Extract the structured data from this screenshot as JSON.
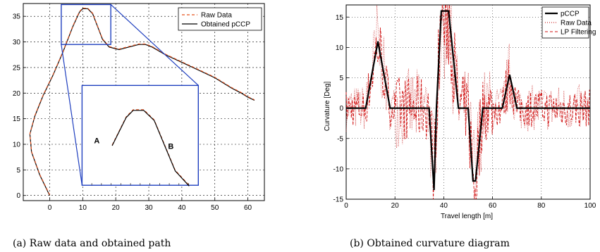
{
  "chart_data": [
    {
      "type": "line",
      "caption": "(a) Raw data and obtained path",
      "xlim": [
        -8,
        65
      ],
      "ylim": [
        -1,
        37.5
      ],
      "x_ticks": [
        0,
        10,
        20,
        30,
        40,
        50,
        60
      ],
      "y_ticks": [
        0,
        5,
        10,
        15,
        20,
        25,
        30,
        35
      ],
      "grid": true,
      "legend_position": "top-right",
      "series": [
        {
          "name": "Raw Data",
          "color": "#e8531f",
          "style": "dashed",
          "x": [
            0,
            -3,
            -5.5,
            -6,
            -4.5,
            -2,
            1,
            4,
            7,
            9,
            10,
            11.5,
            13,
            14.5,
            16,
            18,
            21,
            24,
            27,
            29,
            31,
            35,
            40,
            45,
            50,
            55,
            58,
            60,
            62
          ],
          "y": [
            0,
            4,
            8.5,
            12,
            15.5,
            19.5,
            23.5,
            28,
            33,
            35.8,
            36.5,
            36.5,
            35.5,
            33,
            30.5,
            29,
            28.5,
            29,
            29.5,
            29.5,
            29,
            27.5,
            26,
            24.5,
            23,
            21,
            20,
            19.2,
            18.6
          ]
        },
        {
          "name": "Obtained pCCP",
          "color": "#000000",
          "style": "solid",
          "x": [
            0,
            -3,
            -5.5,
            -6,
            -4.5,
            -2,
            1,
            4,
            7,
            9,
            10,
            11.5,
            13,
            14.5,
            16,
            18,
            21,
            24,
            27,
            29,
            31,
            35,
            40,
            45,
            50,
            55,
            58,
            60,
            62
          ],
          "y": [
            0,
            4,
            8.5,
            12,
            15.5,
            19.5,
            23.5,
            28,
            33,
            35.8,
            36.5,
            36.5,
            35.5,
            33,
            30.5,
            29,
            28.5,
            29,
            29.5,
            29.5,
            29,
            27.5,
            26,
            24.5,
            23,
            21,
            20,
            19.2,
            18.6
          ]
        }
      ],
      "inset": {
        "labels": [
          "A",
          "B"
        ]
      }
    },
    {
      "type": "line",
      "caption": "(b) Obtained curvature diagram",
      "xlabel": "Travel length [m]",
      "ylabel": "Curvature [Deg]",
      "xlim": [
        0,
        100
      ],
      "ylim": [
        -15,
        17
      ],
      "x_ticks": [
        0,
        20,
        40,
        60,
        80,
        100
      ],
      "y_ticks": [
        -15,
        -10,
        -5,
        0,
        5,
        10,
        15
      ],
      "grid": true,
      "legend_position": "top-right",
      "series": [
        {
          "name": "pCCP",
          "color": "#000000",
          "style": "solid",
          "x": [
            0,
            8,
            13,
            18,
            34,
            36,
            37,
            39,
            42,
            46,
            50,
            52,
            53,
            56,
            60,
            62,
            64,
            67,
            70,
            100
          ],
          "y": [
            0,
            0,
            11,
            0,
            0,
            -13.5,
            0,
            16,
            16,
            0,
            0,
            -12,
            -12,
            0,
            0,
            0,
            0,
            5.5,
            0,
            0
          ]
        },
        {
          "name": "Raw Data",
          "color": "#c00000",
          "style": "dotted",
          "x": [],
          "y": []
        },
        {
          "name": "LP Filtering",
          "color": "#d01010",
          "style": "dashed",
          "x": [],
          "y": []
        }
      ]
    }
  ]
}
